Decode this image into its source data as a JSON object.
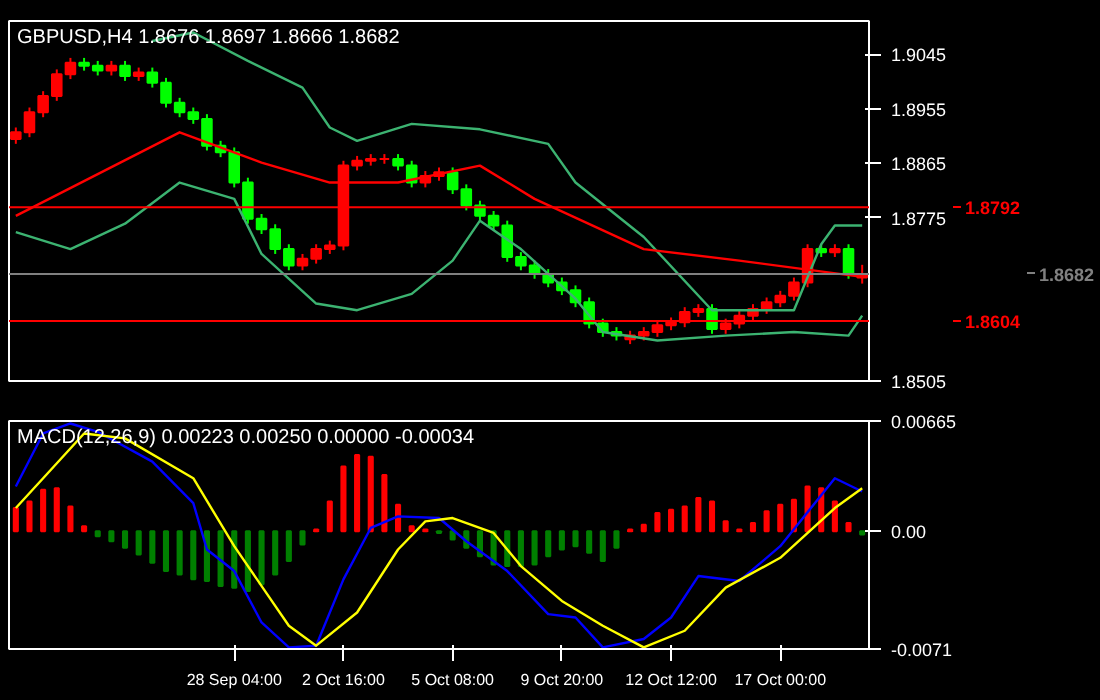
{
  "chart_data": [
    {
      "type": "candlestick",
      "title": "GBPUSD,H4  1.8676 1.8697 1.8666 1.8682",
      "categories": [
        null,
        null,
        null,
        null,
        null,
        null,
        null,
        null,
        null,
        null,
        null,
        null,
        null,
        null,
        null,
        null,
        null,
        null,
        null,
        null,
        null,
        null,
        null,
        null,
        null,
        null,
        null,
        null,
        null,
        null,
        null,
        null,
        null,
        null,
        null,
        null,
        null,
        null,
        null,
        null,
        null,
        null,
        null,
        null,
        null,
        null,
        null,
        null,
        null,
        null,
        null,
        null,
        null,
        null,
        null,
        null,
        null,
        null,
        null,
        null,
        null,
        null,
        null
      ],
      "ohlc": [
        [
          1.8905,
          1.8924,
          1.8897,
          1.8916
        ],
        [
          1.8916,
          1.8957,
          1.8908,
          1.8949
        ],
        [
          1.8949,
          1.8984,
          1.8941,
          1.8976
        ],
        [
          1.8976,
          1.902,
          1.8968,
          1.9012
        ],
        [
          1.9012,
          1.9039,
          1.9004,
          1.9031
        ],
        [
          1.9031,
          1.9039,
          1.9018,
          1.9026
        ],
        [
          1.9026,
          1.9034,
          1.901,
          1.9018
        ],
        [
          1.9018,
          1.9034,
          1.901,
          1.9026
        ],
        [
          1.9026,
          1.9034,
          1.9001,
          1.9009
        ],
        [
          1.9009,
          1.9023,
          1.9001,
          1.9015
        ],
        [
          1.9015,
          1.9023,
          1.899,
          1.8998
        ],
        [
          1.8998,
          1.9006,
          1.8957,
          1.8965
        ],
        [
          1.8965,
          1.8973,
          1.8941,
          1.8949
        ],
        [
          1.8949,
          1.8957,
          1.893,
          1.8938
        ],
        [
          1.8938,
          1.8946,
          1.8886,
          1.8894
        ],
        [
          1.8894,
          1.8902,
          1.8875,
          1.8883
        ],
        [
          1.8883,
          1.8891,
          1.8825,
          1.8833
        ],
        [
          1.8833,
          1.8841,
          1.8765,
          1.8773
        ],
        [
          1.8773,
          1.8781,
          1.8748,
          1.8756
        ],
        [
          1.8756,
          1.8764,
          1.8715,
          1.8723
        ],
        [
          1.8723,
          1.8731,
          1.8688,
          1.8696
        ],
        [
          1.8696,
          1.8715,
          1.8688,
          1.8707
        ],
        [
          1.8707,
          1.8731,
          1.8699,
          1.8723
        ],
        [
          1.8723,
          1.8737,
          1.8715,
          1.8729
        ],
        [
          1.8729,
          1.8869,
          1.8721,
          1.8861
        ],
        [
          1.8861,
          1.8877,
          1.8853,
          1.8869
        ],
        [
          1.8869,
          1.888,
          1.8861,
          1.8872
        ],
        [
          1.8872,
          1.888,
          1.8864,
          1.8872
        ],
        [
          1.8872,
          1.888,
          1.8853,
          1.8861
        ],
        [
          1.8861,
          1.8869,
          1.8825,
          1.8833
        ],
        [
          1.8833,
          1.8852,
          1.8825,
          1.8844
        ],
        [
          1.8844,
          1.8858,
          1.8836,
          1.885
        ],
        [
          1.885,
          1.8858,
          1.8814,
          1.8822
        ],
        [
          1.8822,
          1.883,
          1.8787,
          1.8795
        ],
        [
          1.8795,
          1.8803,
          1.877,
          1.8778
        ],
        [
          1.8778,
          1.8786,
          1.8754,
          1.8762
        ],
        [
          1.8762,
          1.877,
          1.8702,
          1.871
        ],
        [
          1.871,
          1.8718,
          1.8688,
          1.8696
        ],
        [
          1.8696,
          1.8704,
          1.8674,
          1.8682
        ],
        [
          1.8682,
          1.869,
          1.866,
          1.8668
        ],
        [
          1.8668,
          1.8676,
          1.8647,
          1.8655
        ],
        [
          1.8655,
          1.8663,
          1.8627,
          1.8635
        ],
        [
          1.8635,
          1.8643,
          1.8592,
          1.86
        ],
        [
          1.86,
          1.8608,
          1.8578,
          1.8586
        ],
        [
          1.8586,
          1.8594,
          1.8572,
          1.858
        ],
        [
          1.8574,
          1.8588,
          1.8566,
          1.858
        ],
        [
          1.858,
          1.8594,
          1.8572,
          1.8586
        ],
        [
          1.8586,
          1.8605,
          1.8578,
          1.8597
        ],
        [
          1.8597,
          1.861,
          1.8589,
          1.8602
        ],
        [
          1.8602,
          1.8627,
          1.8594,
          1.8619
        ],
        [
          1.8619,
          1.8632,
          1.8611,
          1.8624
        ],
        [
          1.8624,
          1.8632,
          1.8583,
          1.8591
        ],
        [
          1.8591,
          1.8608,
          1.8583,
          1.86
        ],
        [
          1.86,
          1.8621,
          1.8592,
          1.8613
        ],
        [
          1.8613,
          1.8632,
          1.8605,
          1.8624
        ],
        [
          1.8624,
          1.8643,
          1.8616,
          1.8635
        ],
        [
          1.8635,
          1.8654,
          1.8627,
          1.8646
        ],
        [
          1.8646,
          1.8676,
          1.8638,
          1.8668
        ],
        [
          1.8668,
          1.8731,
          1.866,
          1.8723
        ],
        [
          1.8723,
          1.8731,
          1.871,
          1.8718
        ],
        [
          1.8718,
          1.8731,
          1.871,
          1.8723
        ],
        [
          1.8723,
          1.8731,
          1.8674,
          1.8682
        ],
        [
          1.8676,
          1.8697,
          1.8666,
          1.8682
        ]
      ],
      "colors": [
        "#ff0000",
        "#ff0000",
        "#ff0000",
        "#ff0000",
        "#ff0000",
        "#00ff00",
        "#00ff00",
        "#ff0000",
        "#00ff00",
        "#ff0000",
        "#00ff00",
        "#00ff00",
        "#00ff00",
        "#00ff00",
        "#00ff00",
        "#00ff00",
        "#00ff00",
        "#00ff00",
        "#00ff00",
        "#00ff00",
        "#00ff00",
        "#ff0000",
        "#ff0000",
        "#ff0000",
        "#ff0000",
        "#ff0000",
        "#ff0000",
        "#ff0000",
        "#00ff00",
        "#00ff00",
        "#ff0000",
        "#ff0000",
        "#00ff00",
        "#00ff00",
        "#00ff00",
        "#00ff00",
        "#00ff00",
        "#00ff00",
        "#00ff00",
        "#00ff00",
        "#00ff00",
        "#00ff00",
        "#00ff00",
        "#00ff00",
        "#00ff00",
        "#ff0000",
        "#ff0000",
        "#ff0000",
        "#ff0000",
        "#ff0000",
        "#ff0000",
        "#00ff00",
        "#ff0000",
        "#ff0000",
        "#ff0000",
        "#ff0000",
        "#ff0000",
        "#ff0000",
        "#ff0000",
        "#00ff00",
        "#ff0000",
        "#00ff00",
        "#ff0000"
      ],
      "series": [
        {
          "type": "line",
          "color": "#3cb371",
          "values": [
            null,
            null,
            null,
            null,
            null,
            null,
            null,
            null,
            null,
            null,
            1.9067,
            null,
            null,
            1.9081,
            null,
            null,
            null,
            1.9034,
            null,
            null,
            null,
            1.899,
            null,
            1.8924,
            null,
            1.8902,
            null,
            null,
            null,
            1.893,
            null,
            null,
            null,
            null,
            1.8921,
            null,
            null,
            null,
            null,
            1.8897,
            null,
            1.8833,
            null,
            null,
            null,
            null,
            1.8743,
            null,
            null,
            null,
            null,
            1.8622,
            null,
            null,
            null,
            null,
            null,
            1.8622,
            null,
            1.8731,
            1.8762,
            null,
            1.8762
          ]
        },
        {
          "type": "line",
          "color": "#3cb371",
          "values": [
            1.8751,
            null,
            null,
            null,
            1.8723,
            null,
            null,
            null,
            1.8765,
            null,
            null,
            null,
            1.8833,
            null,
            null,
            null,
            1.8806,
            null,
            1.8715,
            null,
            null,
            null,
            1.8633,
            null,
            null,
            1.8622,
            null,
            null,
            null,
            1.8649,
            null,
            null,
            1.8704,
            null,
            1.877,
            null,
            null,
            1.8723,
            null,
            null,
            null,
            1.8641,
            null,
            1.8586,
            null,
            null,
            null,
            1.8572,
            null,
            null,
            null,
            null,
            1.858,
            null,
            null,
            null,
            null,
            1.8586,
            null,
            null,
            null,
            1.858,
            1.8613
          ]
        },
        {
          "type": "line",
          "color": "#ff0000",
          "values": [
            1.8778,
            null,
            null,
            null,
            null,
            null,
            1.8847,
            null,
            null,
            null,
            null,
            null,
            1.8916,
            null,
            null,
            null,
            null,
            null,
            1.8866,
            null,
            null,
            null,
            null,
            1.8833,
            null,
            null,
            null,
            null,
            1.8833,
            null,
            null,
            null,
            null,
            null,
            1.8861,
            null,
            null,
            null,
            1.8806,
            null,
            null,
            null,
            null,
            null,
            null,
            null,
            1.8723,
            null,
            null,
            null,
            null,
            null,
            null,
            1.8704,
            null,
            null,
            null,
            null,
            null,
            null,
            null,
            null,
            1.8677
          ]
        }
      ],
      "ylim": [
        1.8505,
        1.91
      ],
      "yticks": [
        1.8505,
        1.8775,
        1.8865,
        1.8955,
        1.9045
      ],
      "ref_lines": [
        {
          "axis": "y",
          "value": 1.8792,
          "label": "1.8792",
          "color": "#ff0000"
        },
        {
          "axis": "y",
          "value": 1.8682,
          "label": "1.8682",
          "color": "#808080"
        },
        {
          "axis": "y",
          "value": 1.8604,
          "label": "1.8604",
          "color": "#ff0000"
        }
      ],
      "tick_labels": "y"
    },
    {
      "type": "bar",
      "title": "MACD(12,26,9) 0.00223 0.00250 0.00000 -0.00034",
      "categories": [
        null,
        null,
        null,
        null,
        null,
        null,
        null,
        null,
        null,
        null,
        null,
        null,
        null,
        null,
        null,
        null,
        "28 Sep 04:00",
        null,
        null,
        null,
        null,
        null,
        null,
        null,
        "2 Oct 16:00",
        null,
        null,
        null,
        null,
        null,
        null,
        null,
        "5 Oct 08:00",
        null,
        null,
        null,
        null,
        null,
        null,
        null,
        "9 Oct 20:00",
        null,
        null,
        null,
        null,
        null,
        null,
        null,
        "12 Oct 12:00",
        null,
        null,
        null,
        null,
        null,
        null,
        null,
        "17 Oct 00:00",
        null,
        null,
        null,
        null,
        null,
        null
      ],
      "series": [
        {
          "type": "bar",
          "values": [
            0.0014,
            0.0018,
            0.0025,
            0.0026,
            0.0015,
            0.0003,
            -0.0003,
            -0.0006,
            -0.001,
            -0.0014,
            -0.0019,
            -0.0024,
            -0.0026,
            -0.0029,
            -0.003,
            -0.0033,
            -0.0034,
            -0.0036,
            -0.0032,
            -0.0026,
            -0.0018,
            -0.0008,
            0.0001,
            0.0018,
            0.0039,
            0.0046,
            0.0045,
            0.0034,
            0.0016,
            0.0003,
            0.0001,
            -0.0001,
            -0.0005,
            -0.001,
            -0.0015,
            -0.002,
            -0.0021,
            -0.0021,
            -0.002,
            -0.0015,
            -0.0011,
            -0.0009,
            -0.0013,
            -0.0018,
            -0.001,
            0.0001,
            0.0004,
            0.0011,
            0.0013,
            0.0015,
            0.002,
            0.0018,
            0.0006,
            0.0001,
            0.0005,
            0.0012,
            0.0016,
            0.0019,
            0.0027,
            0.0026,
            0.0018,
            0.0005,
            -0.0002
          ],
          "colors": [
            "#ff0000",
            "#ff0000",
            "#ff0000",
            "#ff0000",
            "#ff0000",
            "#ff0000",
            "#008000",
            "#008000",
            "#008000",
            "#008000",
            "#008000",
            "#008000",
            "#008000",
            "#008000",
            "#008000",
            "#008000",
            "#008000",
            "#008000",
            "#008000",
            "#008000",
            "#008000",
            "#008000",
            "#ff0000",
            "#ff0000",
            "#ff0000",
            "#ff0000",
            "#ff0000",
            "#ff0000",
            "#ff0000",
            "#ff0000",
            "#ff0000",
            "#008000",
            "#008000",
            "#008000",
            "#008000",
            "#008000",
            "#008000",
            "#008000",
            "#008000",
            "#008000",
            "#008000",
            "#008000",
            "#008000",
            "#008000",
            "#008000",
            "#ff0000",
            "#ff0000",
            "#ff0000",
            "#ff0000",
            "#ff0000",
            "#ff0000",
            "#ff0000",
            "#ff0000",
            "#ff0000",
            "#ff0000",
            "#ff0000",
            "#ff0000",
            "#ff0000",
            "#ff0000",
            "#ff0000",
            "#ff0000",
            "#ff0000",
            "#008000"
          ]
        },
        {
          "type": "line",
          "color": "#0000ff",
          "values": [
            0.0027,
            null,
            0.0059,
            null,
            0.0065,
            null,
            0.006,
            null,
            null,
            null,
            0.0042,
            null,
            null,
            0.0017,
            -0.0011,
            null,
            -0.0024,
            null,
            -0.0055,
            null,
            -0.007,
            null,
            -0.0069,
            null,
            -0.0029,
            null,
            0.0002,
            null,
            0.0009,
            null,
            null,
            0.0008,
            null,
            -0.0006,
            null,
            null,
            -0.0024,
            null,
            null,
            -0.005,
            null,
            -0.0052,
            null,
            -0.007,
            null,
            null,
            -0.0065,
            null,
            -0.0052,
            null,
            -0.0027,
            null,
            null,
            -0.003,
            null,
            null,
            -0.0009,
            null,
            null,
            null,
            0.0032,
            null,
            0.0024
          ]
        },
        {
          "type": "line",
          "color": "#ffff00",
          "values": [
            0.0014,
            null,
            0.0032,
            null,
            null,
            0.0059,
            null,
            null,
            0.0056,
            null,
            null,
            null,
            null,
            0.0032,
            null,
            null,
            -0.0009,
            null,
            null,
            null,
            -0.0057,
            null,
            -0.0069,
            null,
            null,
            -0.0049,
            null,
            null,
            -0.0011,
            null,
            0.0006,
            null,
            0.0008,
            null,
            null,
            -0.0001,
            null,
            -0.0021,
            null,
            null,
            -0.0042,
            null,
            null,
            -0.0057,
            null,
            null,
            -0.007,
            null,
            null,
            -0.006,
            null,
            null,
            -0.0034,
            null,
            null,
            null,
            -0.0016,
            null,
            null,
            null,
            0.0014,
            null,
            0.0026
          ]
        }
      ],
      "ylim": [
        -0.0071,
        0.00665
      ],
      "yticks": [
        {
          "value": -0.0071,
          "label": "-0.0071"
        },
        {
          "value": 0,
          "label": "0.00"
        },
        {
          "value": 0.00665,
          "label": "0.00665"
        }
      ]
    }
  ]
}
